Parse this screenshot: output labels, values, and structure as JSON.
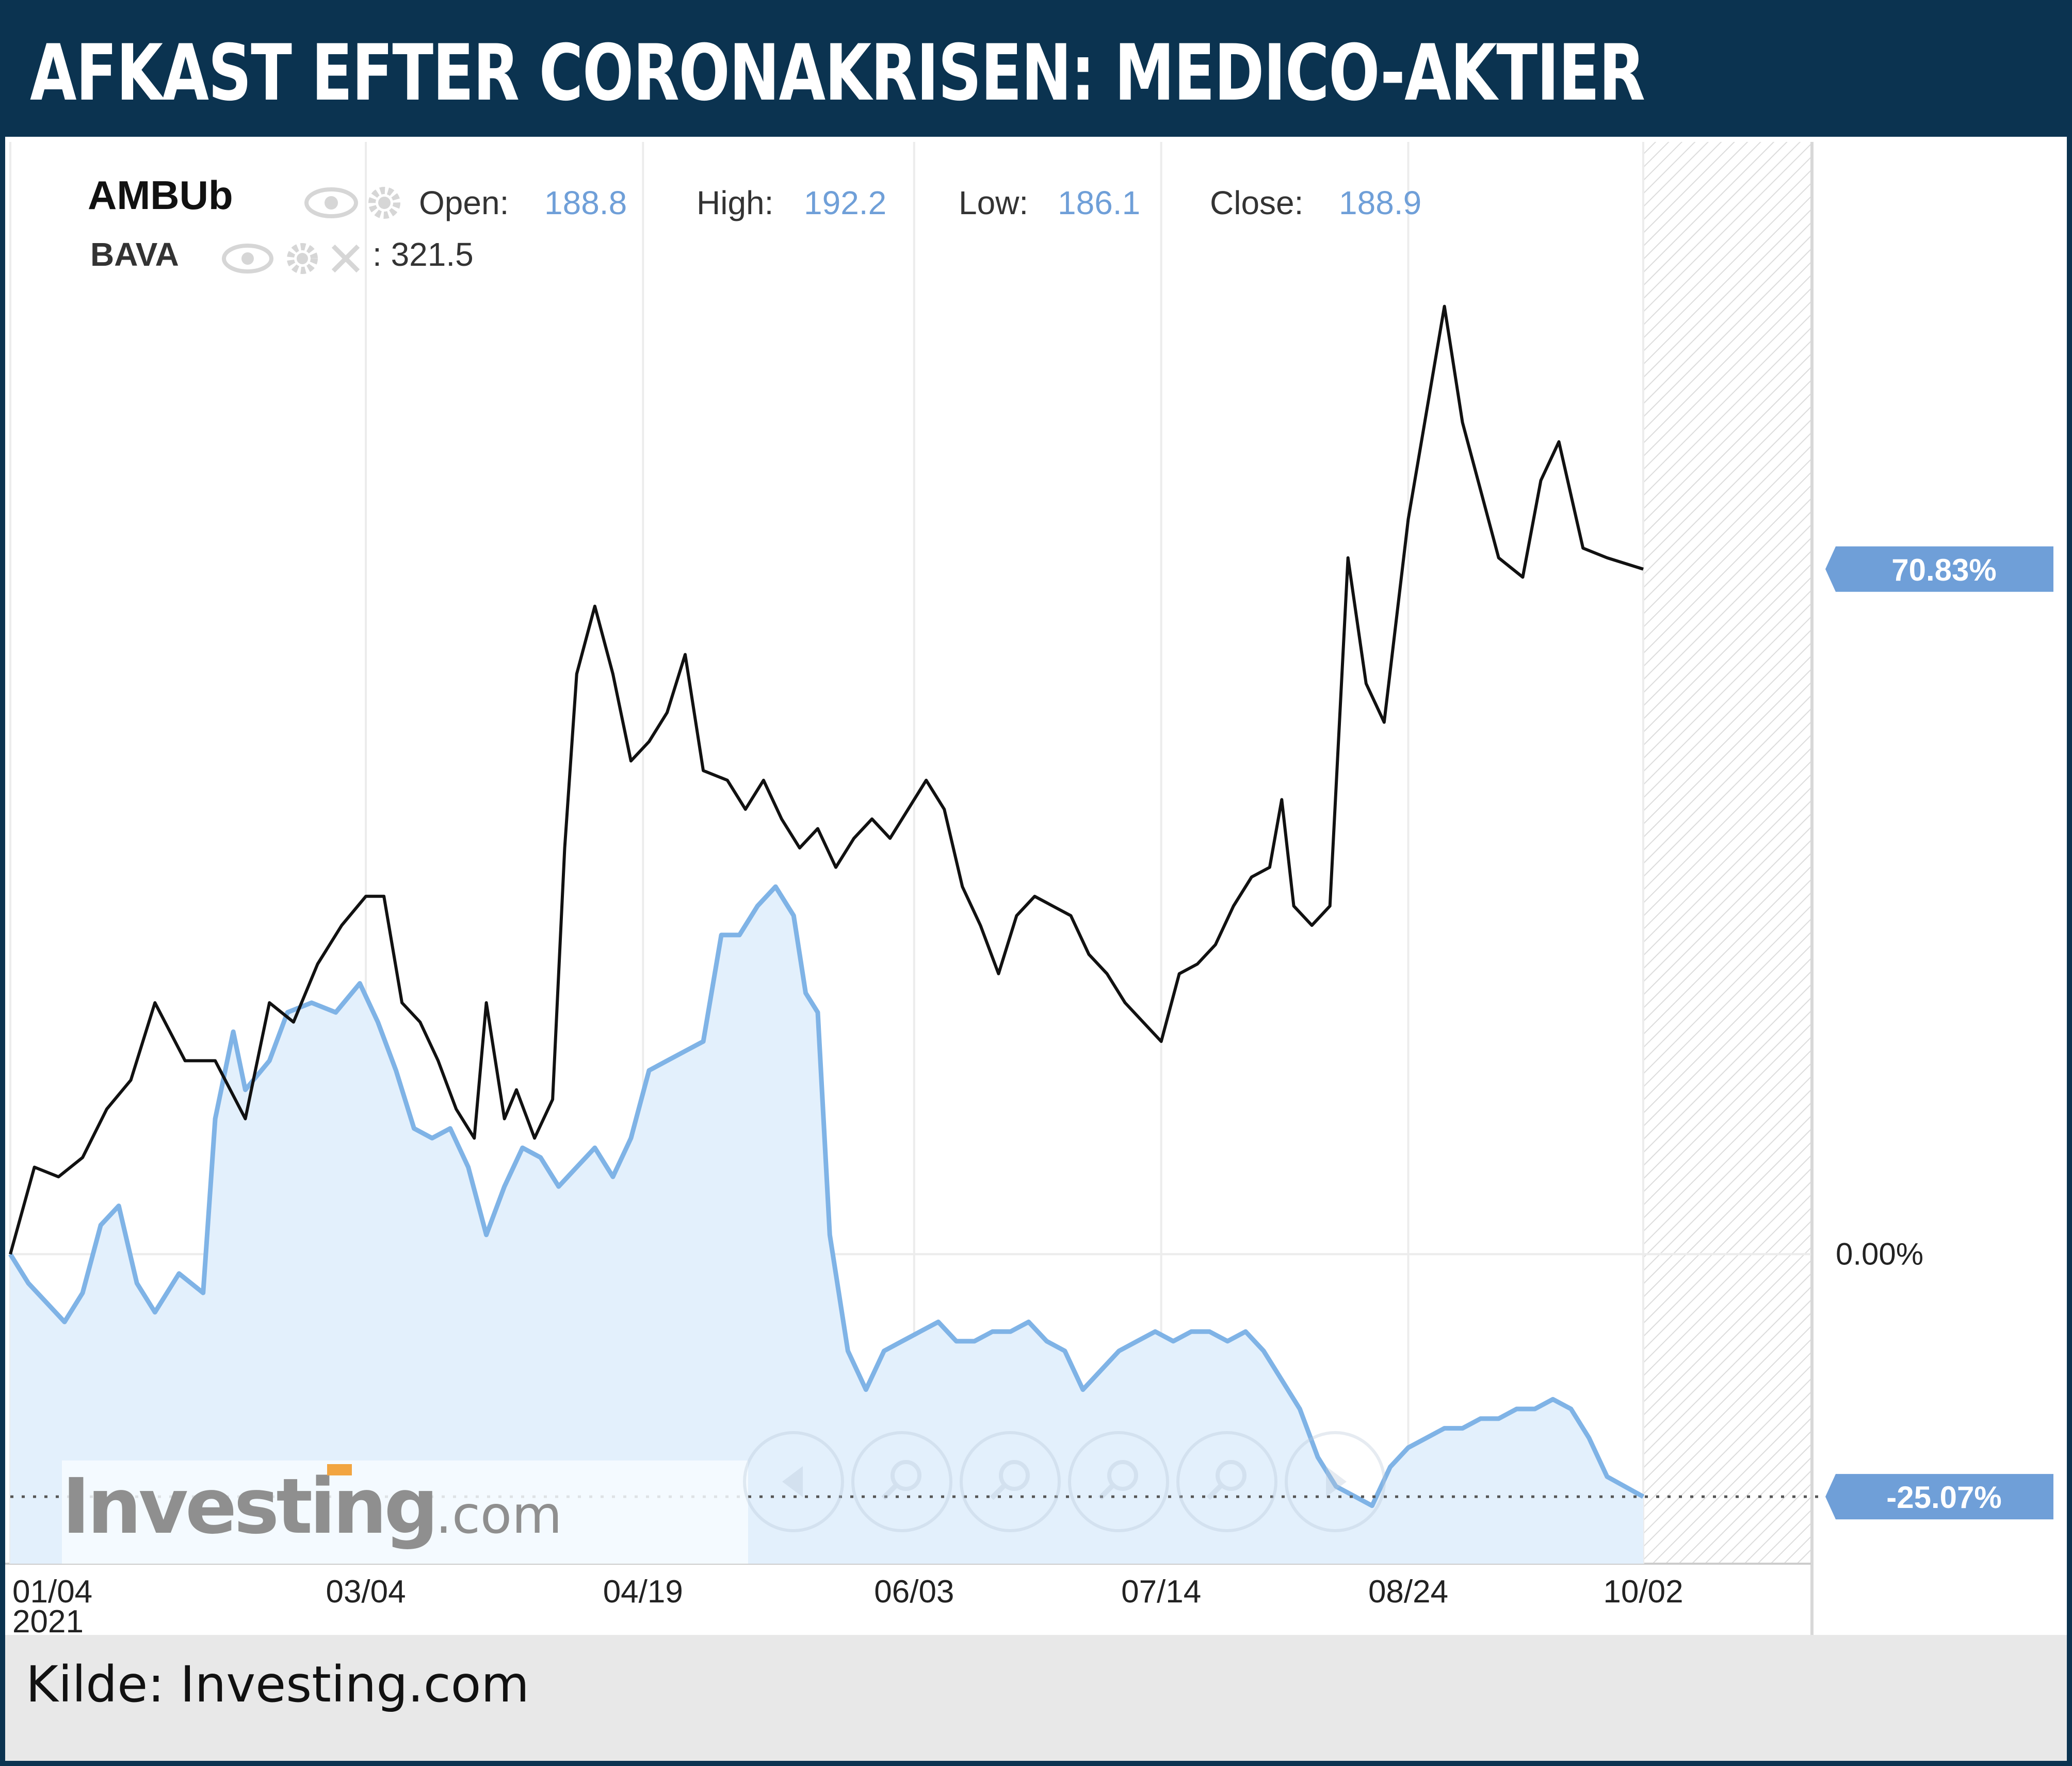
{
  "header": {
    "title": "AFKAST EFTER CORONAKRISEN: MEDICO-AKTIER"
  },
  "legend": {
    "primary_symbol": "AMBUb",
    "open_label": "Open:",
    "open_value": "188.8",
    "high_label": "High:",
    "high_value": "192.2",
    "low_label": "Low:",
    "low_value": "186.1",
    "close_label": "Close:",
    "close_value": "188.9",
    "secondary_symbol": "BAVA",
    "secondary_value": ": 321.5"
  },
  "icons": [
    "eye-icon",
    "gear-icon",
    "close-icon"
  ],
  "watermark": {
    "brand": "Investing",
    "suffix": ".com"
  },
  "navigation_icons": [
    "scroll-left-icon",
    "zoom-in-icon",
    "zoom-out-icon",
    "zoom-reset-icon",
    "zoom-fit-icon",
    "scroll-right-icon"
  ],
  "colors": {
    "header_bg": "#0b3350",
    "ambu_line": "#111111",
    "bava_line": "#7fb3e6",
    "bava_fill": "#e3f0fc",
    "badge_bg": "#6f9fd8",
    "badge_text": "#ffffff"
  },
  "footer": {
    "source": "Kilde: Investing.com"
  },
  "chart_data": {
    "type": "line",
    "x_tick_labels": [
      "01/04",
      "03/04",
      "04/19",
      "06/03",
      "07/14",
      "08/24",
      "10/02"
    ],
    "x_tick_year": "2021",
    "x_range": [
      "2021-01-04",
      "2021-10-02"
    ],
    "y_unit": "%",
    "y_reference_label": "0.00%",
    "ylim": [
      -32,
      115
    ],
    "grid": true,
    "series": [
      {
        "name": "AMBUb",
        "last_label": "70.83%",
        "points": [
          [
            "2021-01-04",
            0
          ],
          [
            "2021-01-08",
            9
          ],
          [
            "2021-01-12",
            8
          ],
          [
            "2021-01-16",
            10
          ],
          [
            "2021-01-20",
            15
          ],
          [
            "2021-01-24",
            18
          ],
          [
            "2021-01-28",
            26
          ],
          [
            "2021-02-02",
            20
          ],
          [
            "2021-02-07",
            20
          ],
          [
            "2021-02-12",
            14
          ],
          [
            "2021-02-16",
            26
          ],
          [
            "2021-02-20",
            24
          ],
          [
            "2021-02-24",
            30
          ],
          [
            "2021-02-28",
            34
          ],
          [
            "2021-03-04",
            37
          ],
          [
            "2021-03-07",
            37
          ],
          [
            "2021-03-10",
            26
          ],
          [
            "2021-03-13",
            24
          ],
          [
            "2021-03-16",
            20
          ],
          [
            "2021-03-19",
            15
          ],
          [
            "2021-03-22",
            12
          ],
          [
            "2021-03-24",
            26
          ],
          [
            "2021-03-27",
            14
          ],
          [
            "2021-03-29",
            17
          ],
          [
            "2021-04-01",
            12
          ],
          [
            "2021-04-04",
            16
          ],
          [
            "2021-04-06",
            42
          ],
          [
            "2021-04-08",
            60
          ],
          [
            "2021-04-11",
            67
          ],
          [
            "2021-04-14",
            60
          ],
          [
            "2021-04-17",
            51
          ],
          [
            "2021-04-20",
            53
          ],
          [
            "2021-04-23",
            56
          ],
          [
            "2021-04-26",
            62
          ],
          [
            "2021-04-29",
            50
          ],
          [
            "2021-05-03",
            49
          ],
          [
            "2021-05-06",
            46
          ],
          [
            "2021-05-09",
            49
          ],
          [
            "2021-05-12",
            45
          ],
          [
            "2021-05-15",
            42
          ],
          [
            "2021-05-18",
            44
          ],
          [
            "2021-05-21",
            40
          ],
          [
            "2021-05-24",
            43
          ],
          [
            "2021-05-27",
            45
          ],
          [
            "2021-05-30",
            43
          ],
          [
            "2021-06-03",
            47
          ],
          [
            "2021-06-05",
            49
          ],
          [
            "2021-06-08",
            46
          ],
          [
            "2021-06-11",
            38
          ],
          [
            "2021-06-14",
            34
          ],
          [
            "2021-06-17",
            29
          ],
          [
            "2021-06-20",
            35
          ],
          [
            "2021-06-23",
            37
          ],
          [
            "2021-06-26",
            36
          ],
          [
            "2021-06-29",
            35
          ],
          [
            "2021-07-02",
            31
          ],
          [
            "2021-07-05",
            29
          ],
          [
            "2021-07-08",
            26
          ],
          [
            "2021-07-11",
            24
          ],
          [
            "2021-07-14",
            22
          ],
          [
            "2021-07-17",
            29
          ],
          [
            "2021-07-20",
            30
          ],
          [
            "2021-07-23",
            32
          ],
          [
            "2021-07-26",
            36
          ],
          [
            "2021-07-29",
            39
          ],
          [
            "2021-08-01",
            40
          ],
          [
            "2021-08-03",
            47
          ],
          [
            "2021-08-05",
            36
          ],
          [
            "2021-08-08",
            34
          ],
          [
            "2021-08-11",
            36
          ],
          [
            "2021-08-14",
            72
          ],
          [
            "2021-08-17",
            59
          ],
          [
            "2021-08-20",
            55
          ],
          [
            "2021-08-24",
            76
          ],
          [
            "2021-08-27",
            87
          ],
          [
            "2021-08-30",
            98
          ],
          [
            "2021-09-02",
            86
          ],
          [
            "2021-09-05",
            79
          ],
          [
            "2021-09-08",
            72
          ],
          [
            "2021-09-12",
            70
          ],
          [
            "2021-09-15",
            80
          ],
          [
            "2021-09-18",
            84
          ],
          [
            "2021-09-22",
            73
          ],
          [
            "2021-09-26",
            72
          ],
          [
            "2021-10-02",
            70.83
          ]
        ]
      },
      {
        "name": "BAVA",
        "last_label": "-25.07%",
        "points": [
          [
            "2021-01-04",
            0
          ],
          [
            "2021-01-07",
            -3
          ],
          [
            "2021-01-10",
            -5
          ],
          [
            "2021-01-13",
            -7
          ],
          [
            "2021-01-16",
            -4
          ],
          [
            "2021-01-19",
            3
          ],
          [
            "2021-01-22",
            5
          ],
          [
            "2021-01-25",
            -3
          ],
          [
            "2021-01-28",
            -6
          ],
          [
            "2021-02-01",
            -2
          ],
          [
            "2021-02-05",
            -4
          ],
          [
            "2021-02-07",
            14
          ],
          [
            "2021-02-10",
            23
          ],
          [
            "2021-02-12",
            17
          ],
          [
            "2021-02-16",
            20
          ],
          [
            "2021-02-19",
            25
          ],
          [
            "2021-02-23",
            26
          ],
          [
            "2021-02-27",
            25
          ],
          [
            "2021-03-03",
            28
          ],
          [
            "2021-03-06",
            24
          ],
          [
            "2021-03-09",
            19
          ],
          [
            "2021-03-12",
            13
          ],
          [
            "2021-03-15",
            12
          ],
          [
            "2021-03-18",
            13
          ],
          [
            "2021-03-21",
            9
          ],
          [
            "2021-03-24",
            2
          ],
          [
            "2021-03-27",
            7
          ],
          [
            "2021-03-30",
            11
          ],
          [
            "2021-04-02",
            10
          ],
          [
            "2021-04-05",
            7
          ],
          [
            "2021-04-08",
            9
          ],
          [
            "2021-04-11",
            11
          ],
          [
            "2021-04-14",
            8
          ],
          [
            "2021-04-17",
            12
          ],
          [
            "2021-04-20",
            19
          ],
          [
            "2021-04-23",
            20
          ],
          [
            "2021-04-26",
            21
          ],
          [
            "2021-04-29",
            22
          ],
          [
            "2021-05-02",
            33
          ],
          [
            "2021-05-05",
            33
          ],
          [
            "2021-05-08",
            36
          ],
          [
            "2021-05-11",
            38
          ],
          [
            "2021-05-14",
            35
          ],
          [
            "2021-05-16",
            27
          ],
          [
            "2021-05-18",
            25
          ],
          [
            "2021-05-20",
            2
          ],
          [
            "2021-05-23",
            -10
          ],
          [
            "2021-05-26",
            -14
          ],
          [
            "2021-05-29",
            -10
          ],
          [
            "2021-06-01",
            -9
          ],
          [
            "2021-06-04",
            -8
          ],
          [
            "2021-06-07",
            -7
          ],
          [
            "2021-06-10",
            -9
          ],
          [
            "2021-06-13",
            -9
          ],
          [
            "2021-06-16",
            -8
          ],
          [
            "2021-06-19",
            -8
          ],
          [
            "2021-06-22",
            -7
          ],
          [
            "2021-06-25",
            -9
          ],
          [
            "2021-06-28",
            -10
          ],
          [
            "2021-07-01",
            -14
          ],
          [
            "2021-07-04",
            -12
          ],
          [
            "2021-07-07",
            -10
          ],
          [
            "2021-07-10",
            -9
          ],
          [
            "2021-07-13",
            -8
          ],
          [
            "2021-07-16",
            -9
          ],
          [
            "2021-07-19",
            -8
          ],
          [
            "2021-07-22",
            -8
          ],
          [
            "2021-07-25",
            -9
          ],
          [
            "2021-07-28",
            -8
          ],
          [
            "2021-07-31",
            -10
          ],
          [
            "2021-08-03",
            -13
          ],
          [
            "2021-08-06",
            -16
          ],
          [
            "2021-08-09",
            -21
          ],
          [
            "2021-08-12",
            -24
          ],
          [
            "2021-08-15",
            -25
          ],
          [
            "2021-08-18",
            -26
          ],
          [
            "2021-08-21",
            -22
          ],
          [
            "2021-08-24",
            -20
          ],
          [
            "2021-08-27",
            -19
          ],
          [
            "2021-08-30",
            -18
          ],
          [
            "2021-09-02",
            -18
          ],
          [
            "2021-09-05",
            -17
          ],
          [
            "2021-09-08",
            -17
          ],
          [
            "2021-09-11",
            -16
          ],
          [
            "2021-09-14",
            -16
          ],
          [
            "2021-09-17",
            -15
          ],
          [
            "2021-09-20",
            -16
          ],
          [
            "2021-09-23",
            -19
          ],
          [
            "2021-09-26",
            -23
          ],
          [
            "2021-10-02",
            -25.07
          ]
        ]
      }
    ]
  }
}
